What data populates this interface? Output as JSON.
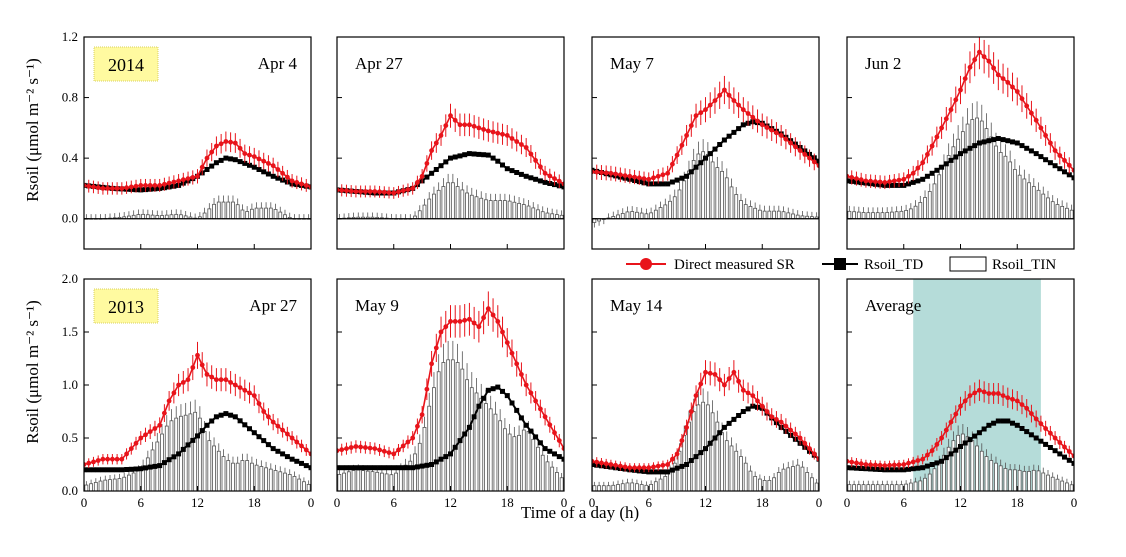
{
  "figure": {
    "xlabel": "Time of a day (h)",
    "ylabel_top": "Rsoil (μmol m⁻² s⁻¹)",
    "ylabel_bottom": "Rsoil (μmol m⁻² s⁻¹)",
    "colors": {
      "measured": "#e8141b",
      "td": "#000000",
      "tin_fill": "#ffffff",
      "tin_edge": "#555555",
      "average_band": "#b5dcd9",
      "year_box": "#fffaa0"
    }
  },
  "legend": {
    "items": [
      {
        "label": "Direct measured SR",
        "marker": "circle",
        "color": "#e8141b"
      },
      {
        "label": "Rsoil_TD",
        "marker": "square",
        "color": "#000000"
      },
      {
        "label": "Rsoil_TIN",
        "marker": "bar",
        "color": "#ffffff"
      }
    ]
  },
  "chart_data": [
    {
      "type": "line",
      "row": 0,
      "col": 0,
      "panel_label": "Apr 4",
      "year_label": "2014",
      "ylim": [
        -0.2,
        1.2
      ],
      "yticks": [
        "0.0",
        "0.4",
        "0.8",
        "1.2"
      ],
      "xticks": [],
      "series": [
        {
          "name": "Direct measured SR",
          "x": [
            0,
            2,
            4,
            6,
            8,
            10,
            12,
            13,
            14,
            15,
            16,
            17,
            18,
            20,
            22,
            24
          ],
          "values": [
            0.22,
            0.2,
            0.2,
            0.22,
            0.22,
            0.25,
            0.28,
            0.4,
            0.48,
            0.51,
            0.5,
            0.43,
            0.41,
            0.35,
            0.25,
            0.21
          ]
        },
        {
          "name": "Rsoil_TD",
          "x": [
            0,
            3,
            6,
            8,
            10,
            12,
            14,
            15,
            16,
            18,
            20,
            22,
            24
          ],
          "values": [
            0.22,
            0.2,
            0.19,
            0.2,
            0.22,
            0.28,
            0.37,
            0.4,
            0.39,
            0.34,
            0.28,
            0.23,
            0.21
          ]
        },
        {
          "name": "Rsoil_TIN",
          "x": [
            0,
            2,
            4,
            6,
            8,
            10,
            12,
            13,
            14,
            15,
            16,
            17,
            18,
            20,
            22,
            24
          ],
          "values": [
            0.0,
            0.0,
            0.01,
            0.03,
            0.02,
            0.03,
            0.0,
            0.05,
            0.11,
            0.11,
            0.11,
            0.04,
            0.07,
            0.07,
            0.0,
            0.0
          ]
        }
      ]
    },
    {
      "type": "line",
      "row": 0,
      "col": 1,
      "panel_label": "Apr 27",
      "ylim": [
        -0.2,
        1.2
      ],
      "yticks": [],
      "xticks": [],
      "series": [
        {
          "name": "Direct measured SR",
          "x": [
            0,
            2,
            4,
            6,
            8,
            9,
            10,
            11,
            12,
            13,
            14,
            15,
            16,
            18,
            20,
            22,
            24
          ],
          "values": [
            0.19,
            0.18,
            0.18,
            0.17,
            0.2,
            0.28,
            0.45,
            0.55,
            0.68,
            0.62,
            0.62,
            0.6,
            0.58,
            0.55,
            0.47,
            0.3,
            0.23
          ]
        },
        {
          "name": "Rsoil_TD",
          "x": [
            0,
            4,
            6,
            8,
            10,
            12,
            14,
            16,
            17,
            18,
            20,
            22,
            24
          ],
          "values": [
            0.19,
            0.17,
            0.17,
            0.2,
            0.3,
            0.4,
            0.43,
            0.42,
            0.38,
            0.33,
            0.28,
            0.24,
            0.21
          ]
        },
        {
          "name": "Rsoil_TIN",
          "x": [
            0,
            2,
            4,
            6,
            8,
            9,
            10,
            11,
            12,
            13,
            14,
            15,
            16,
            18,
            20,
            22,
            24
          ],
          "values": [
            0.0,
            0.01,
            0.01,
            0.0,
            0.0,
            0.07,
            0.15,
            0.2,
            0.25,
            0.2,
            0.16,
            0.14,
            0.12,
            0.12,
            0.09,
            0.04,
            0.02
          ]
        }
      ]
    },
    {
      "type": "line",
      "row": 0,
      "col": 2,
      "panel_label": "May 7",
      "ylim": [
        -0.2,
        1.2
      ],
      "yticks": [],
      "xticks": [],
      "series": [
        {
          "name": "Direct measured SR",
          "x": [
            0,
            2,
            4,
            6,
            8,
            9,
            10,
            11,
            12,
            13,
            14,
            15,
            16,
            18,
            20,
            22,
            24
          ],
          "values": [
            0.31,
            0.3,
            0.28,
            0.26,
            0.3,
            0.42,
            0.55,
            0.68,
            0.72,
            0.78,
            0.85,
            0.78,
            0.72,
            0.62,
            0.55,
            0.45,
            0.35
          ]
        },
        {
          "name": "Rsoil_TD",
          "x": [
            0,
            4,
            6,
            8,
            10,
            12,
            14,
            16,
            17,
            18,
            20,
            22,
            24
          ],
          "values": [
            0.32,
            0.26,
            0.23,
            0.23,
            0.28,
            0.4,
            0.52,
            0.62,
            0.64,
            0.63,
            0.56,
            0.47,
            0.38
          ]
        },
        {
          "name": "Rsoil_TIN",
          "x": [
            0,
            2,
            4,
            6,
            8,
            9,
            10,
            11,
            12,
            13,
            14,
            15,
            16,
            18,
            20,
            22,
            24
          ],
          "values": [
            -0.03,
            0.01,
            0.05,
            0.03,
            0.1,
            0.16,
            0.28,
            0.42,
            0.45,
            0.35,
            0.3,
            0.18,
            0.1,
            0.05,
            0.05,
            0.02,
            0.01
          ]
        }
      ]
    },
    {
      "type": "line",
      "row": 0,
      "col": 3,
      "panel_label": "Jun 2",
      "ylim": [
        -0.2,
        1.2
      ],
      "yticks": [],
      "xticks": [],
      "series": [
        {
          "name": "Direct measured SR",
          "x": [
            0,
            2,
            4,
            6,
            7,
            8,
            9,
            10,
            11,
            12,
            13,
            14,
            15,
            16,
            17,
            18,
            20,
            22,
            24
          ],
          "values": [
            0.28,
            0.25,
            0.24,
            0.26,
            0.3,
            0.37,
            0.48,
            0.6,
            0.72,
            0.85,
            1.0,
            1.1,
            1.04,
            0.95,
            0.9,
            0.84,
            0.65,
            0.45,
            0.32
          ]
        },
        {
          "name": "Rsoil_TD",
          "x": [
            0,
            4,
            6,
            8,
            10,
            12,
            14,
            16,
            18,
            20,
            22,
            24
          ],
          "values": [
            0.25,
            0.22,
            0.22,
            0.26,
            0.34,
            0.43,
            0.5,
            0.53,
            0.5,
            0.43,
            0.35,
            0.27
          ]
        },
        {
          "name": "Rsoil_TIN",
          "x": [
            0,
            2,
            4,
            6,
            7,
            8,
            9,
            10,
            11,
            12,
            13,
            14,
            15,
            16,
            17,
            18,
            20,
            22,
            24
          ],
          "values": [
            0.05,
            0.04,
            0.04,
            0.05,
            0.07,
            0.12,
            0.2,
            0.32,
            0.45,
            0.55,
            0.65,
            0.67,
            0.57,
            0.45,
            0.4,
            0.3,
            0.2,
            0.1,
            0.05
          ]
        }
      ]
    },
    {
      "type": "line",
      "row": 1,
      "col": 0,
      "panel_label": "Apr 27",
      "year_label": "2013",
      "ylim": [
        0,
        2.0
      ],
      "yticks": [
        "0.0",
        "0.5",
        "1.0",
        "1.5",
        "2.0"
      ],
      "xticks": [
        "0",
        "6",
        "12",
        "18",
        "0"
      ],
      "series": [
        {
          "name": "Direct measured SR",
          "x": [
            0,
            2,
            4,
            6,
            8,
            9,
            10,
            11,
            12,
            13,
            14,
            15,
            16,
            17,
            18,
            19,
            20,
            22,
            24
          ],
          "values": [
            0.25,
            0.3,
            0.3,
            0.5,
            0.62,
            0.85,
            1.0,
            1.05,
            1.28,
            1.1,
            1.05,
            1.05,
            1.0,
            0.95,
            0.9,
            0.75,
            0.65,
            0.5,
            0.35
          ]
        },
        {
          "name": "Rsoil_TD",
          "x": [
            0,
            4,
            6,
            8,
            10,
            12,
            13,
            14,
            15,
            16,
            18,
            20,
            22,
            24
          ],
          "values": [
            0.2,
            0.2,
            0.21,
            0.24,
            0.35,
            0.52,
            0.62,
            0.7,
            0.73,
            0.7,
            0.55,
            0.4,
            0.3,
            0.22
          ]
        },
        {
          "name": "Rsoil_TIN",
          "x": [
            0,
            2,
            4,
            6,
            7,
            8,
            9,
            10,
            11,
            12,
            13,
            14,
            15,
            16,
            17,
            18,
            20,
            22,
            24
          ],
          "values": [
            0.05,
            0.1,
            0.12,
            0.2,
            0.35,
            0.5,
            0.65,
            0.7,
            0.72,
            0.75,
            0.5,
            0.4,
            0.3,
            0.25,
            0.3,
            0.25,
            0.2,
            0.15,
            0.05
          ]
        }
      ]
    },
    {
      "type": "line",
      "row": 1,
      "col": 1,
      "panel_label": "May 9",
      "ylim": [
        0,
        2.0
      ],
      "yticks": [],
      "xticks": [
        "0",
        "6",
        "12",
        "18",
        "0"
      ],
      "series": [
        {
          "name": "Direct measured SR",
          "x": [
            0,
            2,
            4,
            6,
            8,
            9,
            10,
            11,
            12,
            13,
            14,
            15,
            16,
            17,
            18,
            19,
            20,
            22,
            24
          ],
          "values": [
            0.38,
            0.42,
            0.4,
            0.35,
            0.5,
            0.72,
            1.2,
            1.5,
            1.6,
            1.6,
            1.62,
            1.55,
            1.72,
            1.6,
            1.4,
            1.2,
            1.0,
            0.7,
            0.4
          ]
        },
        {
          "name": "Rsoil_TD",
          "x": [
            0,
            4,
            8,
            10,
            12,
            14,
            15,
            16,
            17,
            18,
            20,
            22,
            24
          ],
          "values": [
            0.22,
            0.22,
            0.22,
            0.25,
            0.35,
            0.6,
            0.8,
            0.95,
            0.98,
            0.9,
            0.62,
            0.4,
            0.3
          ]
        },
        {
          "name": "Rsoil_TIN",
          "x": [
            0,
            2,
            4,
            6,
            8,
            9,
            10,
            11,
            12,
            13,
            14,
            15,
            16,
            17,
            18,
            19,
            20,
            22,
            24
          ],
          "values": [
            0.15,
            0.2,
            0.18,
            0.15,
            0.3,
            0.5,
            0.9,
            1.2,
            1.25,
            1.2,
            1.0,
            0.9,
            0.8,
            0.7,
            0.55,
            0.5,
            0.6,
            0.3,
            0.1
          ]
        }
      ]
    },
    {
      "type": "line",
      "row": 1,
      "col": 2,
      "panel_label": "May 14",
      "ylim": [
        0,
        2.0
      ],
      "yticks": [],
      "xticks": [
        "0",
        "6",
        "12",
        "18",
        "0"
      ],
      "series": [
        {
          "name": "Direct measured SR",
          "x": [
            0,
            2,
            4,
            6,
            8,
            9,
            10,
            11,
            12,
            13,
            14,
            15,
            16,
            17,
            18,
            19,
            20,
            22,
            24
          ],
          "values": [
            0.28,
            0.25,
            0.22,
            0.22,
            0.25,
            0.35,
            0.6,
            0.9,
            1.12,
            1.1,
            1.0,
            1.12,
            0.95,
            0.9,
            0.8,
            0.7,
            0.65,
            0.5,
            0.3
          ]
        },
        {
          "name": "Rsoil_TD",
          "x": [
            0,
            4,
            6,
            8,
            10,
            12,
            14,
            16,
            17,
            18,
            20,
            22,
            24
          ],
          "values": [
            0.25,
            0.2,
            0.18,
            0.18,
            0.25,
            0.4,
            0.6,
            0.75,
            0.8,
            0.78,
            0.6,
            0.45,
            0.3
          ]
        },
        {
          "name": "Rsoil_TIN",
          "x": [
            0,
            2,
            4,
            6,
            8,
            9,
            10,
            11,
            12,
            13,
            14,
            15,
            16,
            17,
            18,
            19,
            20,
            22,
            24
          ],
          "values": [
            0.05,
            0.05,
            0.08,
            0.05,
            0.15,
            0.3,
            0.6,
            0.8,
            0.85,
            0.7,
            0.5,
            0.4,
            0.3,
            0.15,
            0.1,
            0.1,
            0.2,
            0.25,
            0.05
          ]
        }
      ]
    },
    {
      "type": "line",
      "row": 1,
      "col": 3,
      "panel_label": "Average",
      "shaded_x": [
        7,
        20.5
      ],
      "ylim": [
        0,
        2.0
      ],
      "yticks": [],
      "xticks": [
        "0",
        "6",
        "12",
        "18",
        "0"
      ],
      "series": [
        {
          "name": "Direct measured SR",
          "x": [
            0,
            2,
            4,
            6,
            8,
            9,
            10,
            11,
            12,
            13,
            14,
            15,
            16,
            17,
            18,
            19,
            20,
            22,
            24
          ],
          "values": [
            0.28,
            0.25,
            0.24,
            0.25,
            0.3,
            0.38,
            0.5,
            0.65,
            0.8,
            0.9,
            0.95,
            0.92,
            0.92,
            0.88,
            0.85,
            0.78,
            0.68,
            0.5,
            0.33
          ]
        },
        {
          "name": "Rsoil_TD",
          "x": [
            0,
            4,
            6,
            8,
            10,
            12,
            14,
            15,
            16,
            17,
            18,
            20,
            22,
            24
          ],
          "values": [
            0.22,
            0.2,
            0.2,
            0.22,
            0.28,
            0.42,
            0.55,
            0.62,
            0.66,
            0.66,
            0.62,
            0.5,
            0.38,
            0.26
          ]
        },
        {
          "name": "Rsoil_TIN",
          "x": [
            0,
            2,
            4,
            6,
            8,
            9,
            10,
            11,
            12,
            13,
            14,
            15,
            16,
            17,
            18,
            19,
            20,
            22,
            24
          ],
          "values": [
            0.06,
            0.06,
            0.06,
            0.06,
            0.1,
            0.18,
            0.3,
            0.45,
            0.55,
            0.5,
            0.4,
            0.3,
            0.25,
            0.2,
            0.2,
            0.18,
            0.2,
            0.12,
            0.05
          ]
        }
      ]
    }
  ]
}
